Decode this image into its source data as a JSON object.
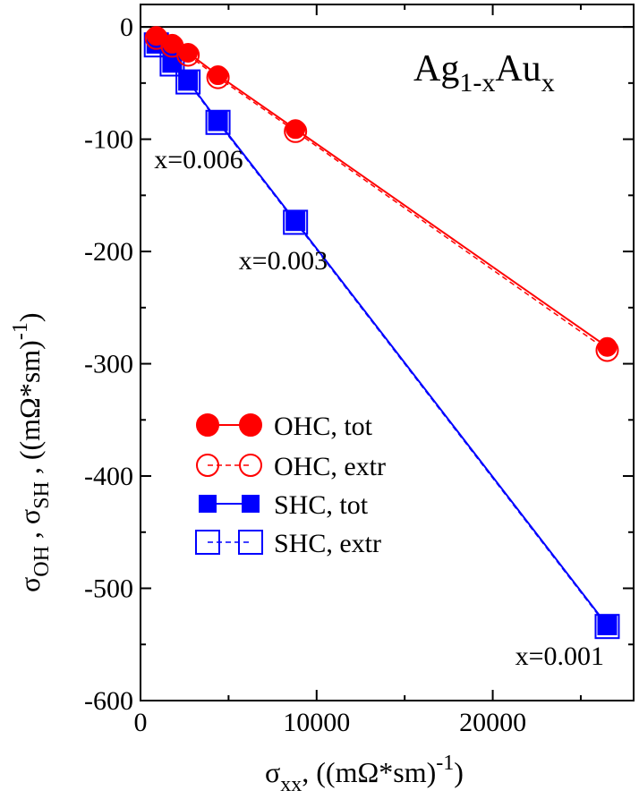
{
  "chart_data": {
    "type": "line",
    "title": "Ag1-xAux",
    "title_parts": {
      "base1": "Ag",
      "sub1": "1-x",
      "base2": "Au",
      "sub2": "x"
    },
    "xlabel": "σxx, ((mΩ*sm)-1)",
    "xlabel_parts": {
      "sigma": "σ",
      "sub": "xx",
      "mid": ", ((mΩ*sm)",
      "sup": "-1",
      "end": ")"
    },
    "ylabel": "σOH , σSH , ((mΩ*sm)-1)",
    "ylabel_parts": {
      "sigma1": "σ",
      "sub1": "OH",
      "sep": " , ",
      "sigma2": "σ",
      "sub2": "SH",
      "mid": " , ((mΩ*sm)",
      "sup": "-1",
      "end": ")"
    },
    "xlim": [
      0,
      28000
    ],
    "ylim": [
      -600,
      20
    ],
    "x_ticks": [
      {
        "value": 0,
        "label": "0"
      },
      {
        "value": 10000,
        "label": "10000"
      },
      {
        "value": 20000,
        "label": "20000"
      }
    ],
    "y_ticks": [
      {
        "value": 0,
        "label": "0"
      },
      {
        "value": -100,
        "label": "-100"
      },
      {
        "value": -200,
        "label": "-200"
      },
      {
        "value": -300,
        "label": "-300"
      },
      {
        "value": -400,
        "label": "-400"
      },
      {
        "value": -500,
        "label": "-500"
      },
      {
        "value": -600,
        "label": "-600"
      }
    ],
    "legend_position": "center-left",
    "series": [
      {
        "name": "OHC, tot",
        "color": "#ff0000",
        "marker": "circle",
        "filled": true,
        "dashed": false,
        "x": [
          900,
          1800,
          2700,
          4400,
          8800,
          26500
        ],
        "y": [
          -8,
          -15,
          -23,
          -43,
          -91,
          -285
        ]
      },
      {
        "name": "OHC, extr",
        "color": "#ff0000",
        "marker": "circle",
        "filled": false,
        "dashed": true,
        "x": [
          900,
          1800,
          2700,
          4400,
          8800,
          26500
        ],
        "y": [
          -10,
          -17,
          -25,
          -45,
          -93,
          -288
        ]
      },
      {
        "name": "SHC, tot",
        "color": "#0000ff",
        "marker": "square",
        "filled": true,
        "dashed": false,
        "x": [
          900,
          1800,
          2700,
          4400,
          8800,
          26500
        ],
        "y": [
          -15,
          -32,
          -48,
          -84,
          -173,
          -533
        ]
      },
      {
        "name": "SHC, extr",
        "color": "#0000ff",
        "marker": "square",
        "filled": false,
        "dashed": true,
        "x": [
          900,
          1800,
          2700,
          4400,
          8800,
          26500
        ],
        "y": [
          -16,
          -33,
          -49,
          -85,
          -174,
          -534
        ]
      }
    ],
    "annotations": [
      {
        "text": "x=0.006",
        "x": 3300,
        "y": -118
      },
      {
        "text": "x=0.003",
        "x": 8100,
        "y": -208
      },
      {
        "text": "x=0.001",
        "x": 23800,
        "y": -560
      }
    ]
  }
}
